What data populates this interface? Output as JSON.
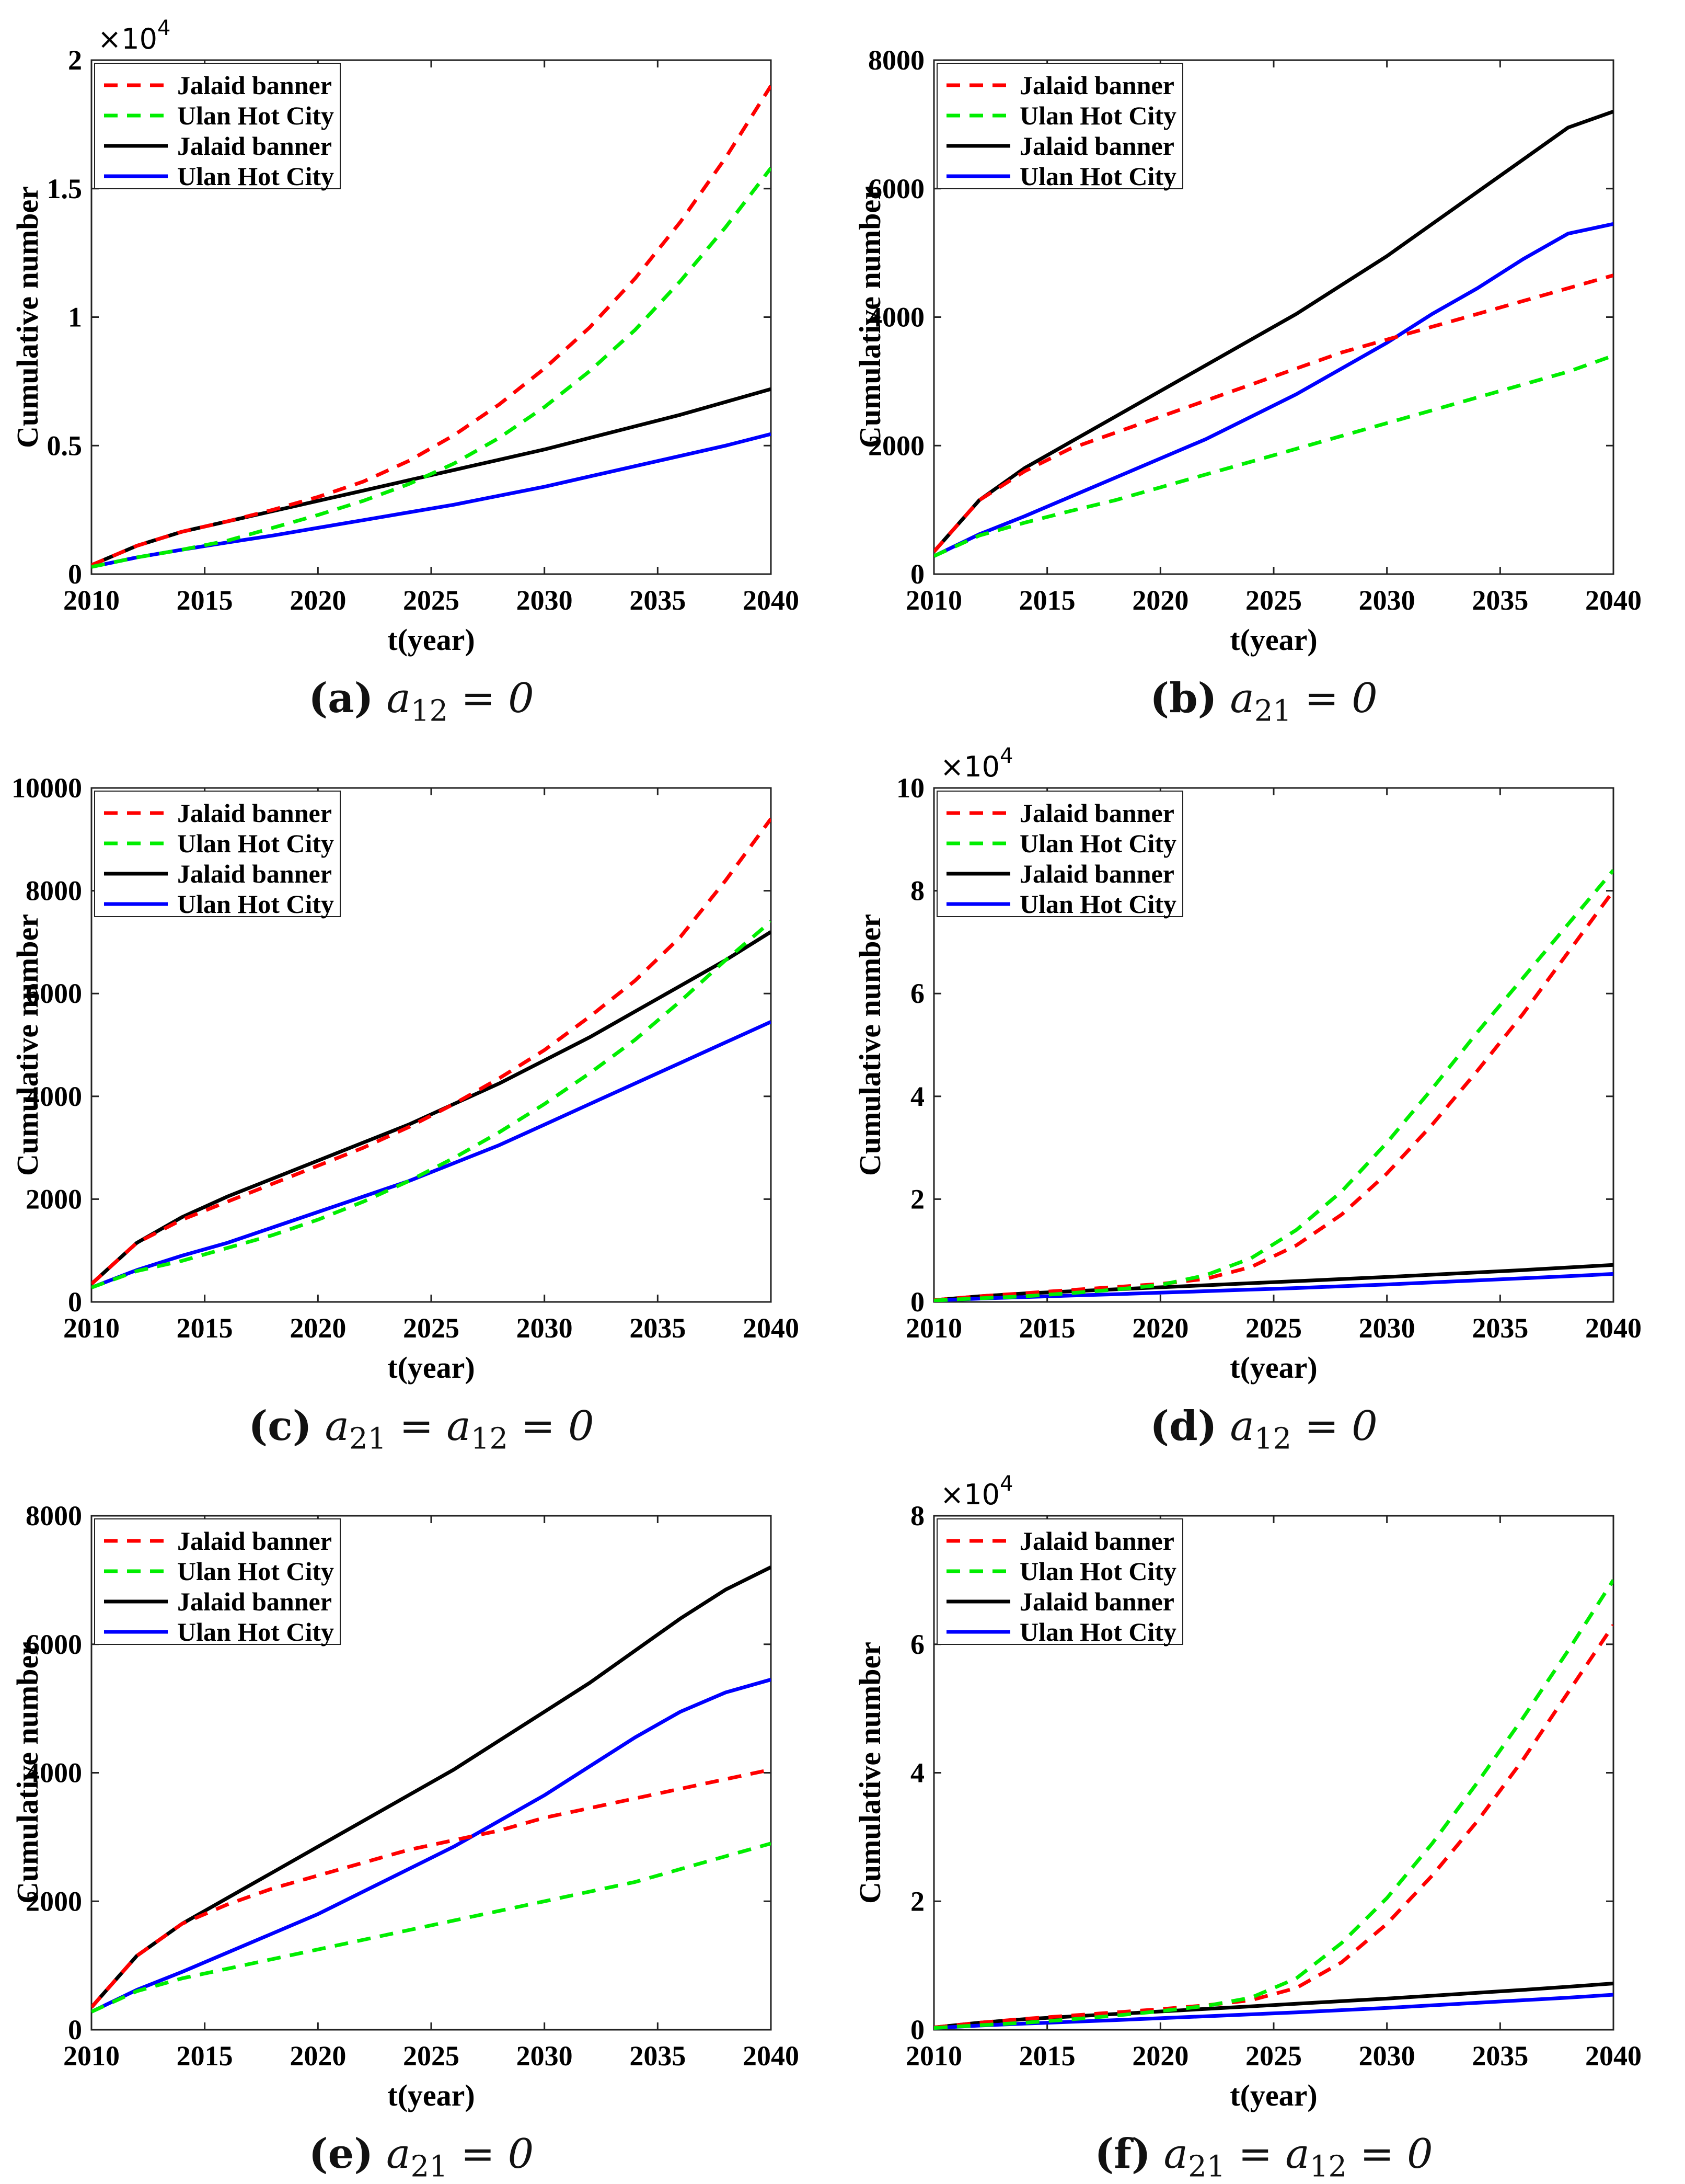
{
  "figure": {
    "xlabel": "t(year)",
    "ylabel": "Cumulative number",
    "legend": [
      "Jalaid banner",
      "Ulan Hot City",
      "Jalaid banner",
      "Ulan Hot City"
    ],
    "series_colors": [
      "#ff0000",
      "#00ee00",
      "#000000",
      "#0000ff"
    ]
  },
  "chart_data": [
    {
      "type": "line",
      "title": "",
      "caption_letter": "(a)",
      "caption_expr": "a12 = 0",
      "xlabel": "t(year)",
      "ylabel": "Cumulative number",
      "xlim": [
        2010,
        2040
      ],
      "ylim": [
        0,
        20000
      ],
      "xticks": [
        2010,
        2015,
        2020,
        2025,
        2030,
        2035,
        2040
      ],
      "yticks": [
        0,
        5000,
        10000,
        15000,
        20000
      ],
      "ytick_labels": [
        "0",
        "0.5",
        "1",
        "1.5",
        "2"
      ],
      "exponent_label": "×10^4",
      "x": [
        2010,
        2012,
        2014,
        2016,
        2018,
        2020,
        2022,
        2024,
        2026,
        2028,
        2030,
        2032,
        2034,
        2036,
        2038,
        2040
      ],
      "series": [
        {
          "name": "Jalaid banner",
          "style": "dashed",
          "color": "#ff0000",
          "values": [
            350,
            1100,
            1650,
            2050,
            2500,
            3000,
            3600,
            4400,
            5400,
            6600,
            8000,
            9600,
            11500,
            13700,
            16200,
            19000
          ]
        },
        {
          "name": "Ulan Hot City",
          "style": "dashed",
          "color": "#00ee00",
          "values": [
            280,
            650,
            950,
            1300,
            1800,
            2300,
            2850,
            3500,
            4300,
            5300,
            6500,
            7900,
            9500,
            11400,
            13500,
            15800
          ]
        },
        {
          "name": "Jalaid banner",
          "style": "solid",
          "color": "#000000",
          "values": [
            350,
            1100,
            1650,
            2050,
            2450,
            2850,
            3250,
            3650,
            4050,
            4450,
            4850,
            5300,
            5750,
            6200,
            6700,
            7200
          ]
        },
        {
          "name": "Ulan Hot City",
          "style": "solid",
          "color": "#0000ff",
          "values": [
            280,
            650,
            950,
            1230,
            1500,
            1800,
            2100,
            2400,
            2700,
            3050,
            3400,
            3800,
            4200,
            4600,
            5000,
            5450
          ]
        }
      ]
    },
    {
      "type": "line",
      "title": "",
      "caption_letter": "(b)",
      "caption_expr": "a21 = 0",
      "xlabel": "t(year)",
      "ylabel": "Cumulative number",
      "xlim": [
        2010,
        2040
      ],
      "ylim": [
        0,
        8000
      ],
      "xticks": [
        2010,
        2015,
        2020,
        2025,
        2030,
        2035,
        2040
      ],
      "yticks": [
        0,
        2000,
        4000,
        6000,
        8000
      ],
      "ytick_labels": [
        "0",
        "2000",
        "4000",
        "6000",
        "8000"
      ],
      "exponent_label": "",
      "x": [
        2010,
        2012,
        2014,
        2016,
        2018,
        2020,
        2022,
        2024,
        2026,
        2028,
        2030,
        2032,
        2034,
        2036,
        2038,
        2040
      ],
      "series": [
        {
          "name": "Jalaid banner",
          "style": "dashed",
          "color": "#ff0000",
          "values": [
            350,
            1150,
            1600,
            1950,
            2200,
            2450,
            2700,
            2950,
            3200,
            3450,
            3650,
            3850,
            4050,
            4250,
            4450,
            4650
          ]
        },
        {
          "name": "Ulan Hot City",
          "style": "dashed",
          "color": "#00ee00",
          "values": [
            280,
            600,
            800,
            980,
            1150,
            1350,
            1550,
            1750,
            1950,
            2150,
            2350,
            2550,
            2750,
            2950,
            3150,
            3400
          ]
        },
        {
          "name": "Jalaid banner",
          "style": "solid",
          "color": "#000000",
          "values": [
            350,
            1150,
            1650,
            2050,
            2450,
            2850,
            3250,
            3650,
            4050,
            4500,
            4950,
            5450,
            5950,
            6450,
            6950,
            7200
          ]
        },
        {
          "name": "Ulan Hot City",
          "style": "solid",
          "color": "#0000ff",
          "values": [
            280,
            620,
            900,
            1200,
            1500,
            1800,
            2100,
            2450,
            2800,
            3200,
            3600,
            4050,
            4450,
            4900,
            5300,
            5450
          ]
        }
      ]
    },
    {
      "type": "line",
      "title": "",
      "caption_letter": "(c)",
      "caption_expr": "a21 = a12 = 0",
      "xlabel": "t(year)",
      "ylabel": "Cumulative number",
      "xlim": [
        2010,
        2040
      ],
      "ylim": [
        0,
        10000
      ],
      "xticks": [
        2010,
        2015,
        2020,
        2025,
        2030,
        2035,
        2040
      ],
      "yticks": [
        0,
        2000,
        4000,
        6000,
        8000,
        10000
      ],
      "ytick_labels": [
        "0",
        "2000",
        "4000",
        "6000",
        "8000",
        "10000"
      ],
      "exponent_label": "",
      "x": [
        2010,
        2012,
        2014,
        2016,
        2018,
        2020,
        2022,
        2024,
        2026,
        2028,
        2030,
        2032,
        2034,
        2036,
        2038,
        2040
      ],
      "series": [
        {
          "name": "Jalaid banner",
          "style": "dashed",
          "color": "#ff0000",
          "values": [
            350,
            1150,
            1600,
            1950,
            2300,
            2650,
            3000,
            3400,
            3850,
            4350,
            4900,
            5550,
            6250,
            7100,
            8200,
            9400
          ]
        },
        {
          "name": "Ulan Hot City",
          "style": "dashed",
          "color": "#00ee00",
          "values": [
            280,
            600,
            800,
            1050,
            1300,
            1600,
            1950,
            2350,
            2800,
            3300,
            3850,
            4450,
            5100,
            5850,
            6650,
            7400
          ]
        },
        {
          "name": "Jalaid banner",
          "style": "solid",
          "color": "#000000",
          "values": [
            350,
            1150,
            1650,
            2050,
            2400,
            2750,
            3100,
            3450,
            3850,
            4250,
            4700,
            5150,
            5650,
            6150,
            6650,
            7200
          ]
        },
        {
          "name": "Ulan Hot City",
          "style": "solid",
          "color": "#0000ff",
          "values": [
            280,
            620,
            900,
            1150,
            1450,
            1750,
            2050,
            2350,
            2700,
            3050,
            3450,
            3850,
            4250,
            4650,
            5050,
            5450
          ]
        }
      ]
    },
    {
      "type": "line",
      "title": "",
      "caption_letter": "(d)",
      "caption_expr": "a12 = 0",
      "xlabel": "t(year)",
      "ylabel": "Cumulative number",
      "xlim": [
        2010,
        2040
      ],
      "ylim": [
        0,
        100000
      ],
      "xticks": [
        2010,
        2015,
        2020,
        2025,
        2030,
        2035,
        2040
      ],
      "yticks": [
        0,
        20000,
        40000,
        60000,
        80000,
        100000
      ],
      "ytick_labels": [
        "0",
        "2",
        "4",
        "6",
        "8",
        "10"
      ],
      "exponent_label": "×10^4",
      "x": [
        2010,
        2012,
        2014,
        2016,
        2018,
        2020,
        2022,
        2024,
        2026,
        2028,
        2030,
        2032,
        2034,
        2036,
        2038,
        2040
      ],
      "series": [
        {
          "name": "Jalaid banner",
          "style": "dashed",
          "color": "#ff0000",
          "values": [
            350,
            1100,
            1700,
            2300,
            2900,
            3500,
            4500,
            6800,
            11000,
            17000,
            25000,
            34500,
            45000,
            56000,
            68000,
            80000
          ]
        },
        {
          "name": "Ulan Hot City",
          "style": "dashed",
          "color": "#00ee00",
          "values": [
            280,
            700,
            1100,
            1700,
            2400,
            3300,
            5200,
            8500,
            14000,
            21500,
            31000,
            41500,
            52500,
            63000,
            73500,
            84000
          ]
        },
        {
          "name": "Jalaid banner",
          "style": "solid",
          "color": "#000000",
          "values": [
            350,
            1100,
            1650,
            2050,
            2450,
            2850,
            3250,
            3650,
            4050,
            4450,
            4850,
            5300,
            5750,
            6200,
            6700,
            7200
          ]
        },
        {
          "name": "Ulan Hot City",
          "style": "solid",
          "color": "#0000ff",
          "values": [
            280,
            650,
            950,
            1230,
            1500,
            1800,
            2100,
            2400,
            2700,
            3050,
            3400,
            3800,
            4200,
            4600,
            5000,
            5450
          ]
        }
      ]
    },
    {
      "type": "line",
      "title": "",
      "caption_letter": "(e)",
      "caption_expr": "a21 = 0",
      "xlabel": "t(year)",
      "ylabel": "Cumulative number",
      "xlim": [
        2010,
        2040
      ],
      "ylim": [
        0,
        8000
      ],
      "xticks": [
        2010,
        2015,
        2020,
        2025,
        2030,
        2035,
        2040
      ],
      "yticks": [
        0,
        2000,
        4000,
        6000,
        8000
      ],
      "ytick_labels": [
        "0",
        "2000",
        "4000",
        "6000",
        "8000"
      ],
      "exponent_label": "",
      "x": [
        2010,
        2012,
        2014,
        2016,
        2018,
        2020,
        2022,
        2024,
        2026,
        2028,
        2030,
        2032,
        2034,
        2036,
        2038,
        2040
      ],
      "series": [
        {
          "name": "Jalaid banner",
          "style": "dashed",
          "color": "#ff0000",
          "values": [
            350,
            1150,
            1650,
            1950,
            2200,
            2400,
            2600,
            2800,
            2950,
            3100,
            3300,
            3450,
            3600,
            3750,
            3900,
            4050
          ]
        },
        {
          "name": "Ulan Hot City",
          "style": "dashed",
          "color": "#00ee00",
          "values": [
            280,
            600,
            800,
            950,
            1100,
            1250,
            1400,
            1550,
            1700,
            1850,
            2000,
            2150,
            2300,
            2500,
            2700,
            2900
          ]
        },
        {
          "name": "Jalaid banner",
          "style": "solid",
          "color": "#000000",
          "values": [
            350,
            1150,
            1650,
            2050,
            2450,
            2850,
            3250,
            3650,
            4050,
            4500,
            4950,
            5400,
            5900,
            6400,
            6850,
            7200
          ]
        },
        {
          "name": "Ulan Hot City",
          "style": "solid",
          "color": "#0000ff",
          "values": [
            280,
            620,
            900,
            1200,
            1500,
            1800,
            2150,
            2500,
            2850,
            3250,
            3650,
            4100,
            4550,
            4950,
            5250,
            5450
          ]
        }
      ]
    },
    {
      "type": "line",
      "title": "",
      "caption_letter": "(f)",
      "caption_expr": "a21 = a12 = 0",
      "xlabel": "t(year)",
      "ylabel": "Cumulative number",
      "xlim": [
        2010,
        2040
      ],
      "ylim": [
        0,
        80000
      ],
      "xticks": [
        2010,
        2015,
        2020,
        2025,
        2030,
        2035,
        2040
      ],
      "yticks": [
        0,
        20000,
        40000,
        60000,
        80000
      ],
      "ytick_labels": [
        "0",
        "2",
        "4",
        "6",
        "8"
      ],
      "exponent_label": "×10^4",
      "x": [
        2010,
        2012,
        2014,
        2016,
        2018,
        2020,
        2022,
        2024,
        2026,
        2028,
        2030,
        2032,
        2034,
        2036,
        2038,
        2040
      ],
      "series": [
        {
          "name": "Jalaid banner",
          "style": "dashed",
          "color": "#ff0000",
          "values": [
            350,
            1100,
            1700,
            2200,
            2700,
            3200,
            3800,
            4600,
            6500,
            10500,
            16500,
            24000,
            32500,
            42000,
            52500,
            63000
          ]
        },
        {
          "name": "Ulan Hot City",
          "style": "dashed",
          "color": "#00ee00",
          "values": [
            280,
            700,
            1100,
            1600,
            2200,
            2900,
            3700,
            5000,
            8000,
            13500,
            20500,
            29000,
            38500,
            48500,
            59000,
            70000
          ]
        },
        {
          "name": "Jalaid banner",
          "style": "solid",
          "color": "#000000",
          "values": [
            350,
            1100,
            1650,
            2050,
            2450,
            2850,
            3250,
            3650,
            4050,
            4450,
            4850,
            5300,
            5750,
            6200,
            6700,
            7200
          ]
        },
        {
          "name": "Ulan Hot City",
          "style": "solid",
          "color": "#0000ff",
          "values": [
            280,
            650,
            950,
            1230,
            1500,
            1800,
            2100,
            2400,
            2700,
            3050,
            3400,
            3800,
            4200,
            4600,
            5000,
            5450
          ]
        }
      ]
    }
  ]
}
